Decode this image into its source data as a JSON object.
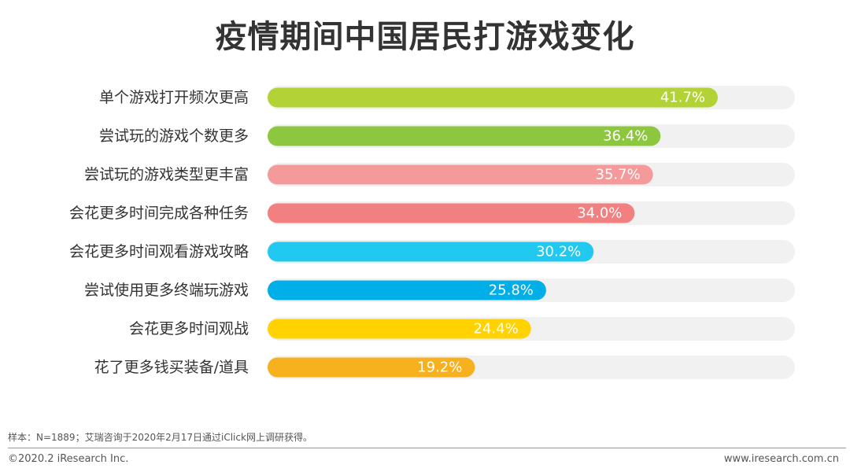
{
  "chart_data": {
    "type": "bar",
    "orientation": "horizontal",
    "title": "疫情期间中国居民打游戏变化",
    "categories": [
      "单个游戏打开频次更高",
      "尝试玩的游戏个数更多",
      "尝试玩的游戏类型更丰富",
      "会花更多时间完成各种任务",
      "会花更多时间观看游戏攻略",
      "尝试使用更多终端玩游戏",
      "会花更多时间观战",
      "花了更多钱买装备/道具"
    ],
    "values": [
      41.7,
      36.4,
      35.7,
      34.0,
      30.2,
      25.8,
      24.4,
      19.2
    ],
    "value_labels": [
      "41.7%",
      "36.4%",
      "35.7%",
      "34.0%",
      "30.2%",
      "25.8%",
      "24.4%",
      "19.2%"
    ],
    "colors": [
      "#b2d235",
      "#8dc63f",
      "#f59a9a",
      "#f28080",
      "#21c8f0",
      "#00aee8",
      "#ffd200",
      "#f7b01e"
    ],
    "track_color": "#f1f1f1",
    "xlim": [
      0,
      50
    ],
    "grid": false,
    "legend": "none"
  },
  "footer": {
    "note": "样本：N=1889；艾瑞咨询于2020年2月17日通过iClick网上调研获得。",
    "copyright": "©2020.2 iResearch Inc.",
    "site": "www.iresearch.com.cn"
  }
}
